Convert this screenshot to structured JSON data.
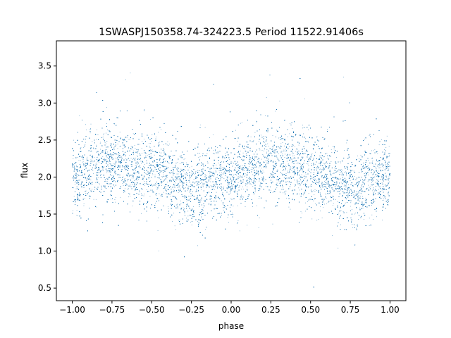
{
  "chart_data": {
    "type": "scatter",
    "title": "1SWASPJ150358.74-324223.5 Period 11522.91406s",
    "xlabel": "phase",
    "ylabel": "flux",
    "xlim": [
      -1.1,
      1.1
    ],
    "ylim": [
      0.33,
      3.84
    ],
    "x_ticks": [
      -1.0,
      -0.75,
      -0.5,
      -0.25,
      0.0,
      0.25,
      0.5,
      0.75,
      1.0
    ],
    "x_tick_labels": [
      "−1.00",
      "−0.75",
      "−0.50",
      "−0.25",
      "0.00",
      "0.25",
      "0.50",
      "0.75",
      "1.00"
    ],
    "y_ticks": [
      0.5,
      1.0,
      1.5,
      2.0,
      2.5,
      3.0,
      3.5
    ],
    "y_tick_labels": [
      "0.5",
      "1.0",
      "1.5",
      "2.0",
      "2.5",
      "3.0",
      "3.5"
    ],
    "grid": false,
    "point_color": "#1f77b4",
    "series": [
      {
        "x_range": [
          -1.0,
          1.0
        ],
        "point_count": 40000,
        "trend": {
          "phase": [
            -1.0,
            -0.75,
            -0.5,
            -0.25,
            0.0,
            0.25,
            0.5,
            0.75,
            1.0
          ],
          "flux_center": [
            2.0,
            2.2,
            2.1,
            1.85,
            2.0,
            2.2,
            2.1,
            1.85,
            2.0
          ],
          "flux_spread": 0.25
        },
        "flux_min": 0.47,
        "flux_max": 3.65
      }
    ]
  }
}
